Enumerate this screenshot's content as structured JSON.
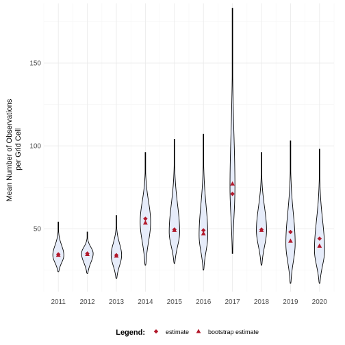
{
  "chart_data": {
    "type": "violin",
    "title": "",
    "xlabel": "",
    "ylabel": "Mean Number of Observations per Grid Cell",
    "ylabel_lines": [
      "Mean Number of Observations",
      "per Grid Cell"
    ],
    "ylim": [
      12,
      186
    ],
    "y_ticks": [
      50,
      100,
      150
    ],
    "grid": true,
    "legend_position": "bottom",
    "legend_title": "Legend:",
    "colors": {
      "violin_fill": "#e6ecfa",
      "violin_outline": "#000000",
      "points": "#b2182b"
    },
    "categories": [
      "2011",
      "2012",
      "2013",
      "2014",
      "2015",
      "2016",
      "2017",
      "2018",
      "2019",
      "2020"
    ],
    "series": [
      {
        "name": "estimate",
        "shape": "diamond",
        "values": [
          34.5,
          35,
          34,
          56,
          49.5,
          49,
          71,
          49.5,
          48,
          44
        ]
      },
      {
        "name": "bootstrap estimate",
        "shape": "triangle",
        "values": [
          34,
          34.5,
          33.5,
          53.5,
          49,
          47,
          77,
          49,
          42.5,
          39.5
        ]
      }
    ],
    "violins": [
      {
        "category": "2011",
        "min": 24,
        "max": 54,
        "mode": 34,
        "max_width": 0.38
      },
      {
        "category": "2012",
        "min": 23,
        "max": 48,
        "mode": 35,
        "max_width": 0.4
      },
      {
        "category": "2013",
        "min": 20,
        "max": 58,
        "mode": 34,
        "max_width": 0.36
      },
      {
        "category": "2014",
        "min": 28,
        "max": 96,
        "mode": 54,
        "max_width": 0.36
      },
      {
        "category": "2015",
        "min": 29,
        "max": 104,
        "mode": 48,
        "max_width": 0.36
      },
      {
        "category": "2016",
        "min": 25,
        "max": 107,
        "mode": 46,
        "max_width": 0.3
      },
      {
        "category": "2017",
        "min": 35,
        "max": 183,
        "mode": 75,
        "max_width": 0.17
      },
      {
        "category": "2018",
        "min": 28,
        "max": 96,
        "mode": 49,
        "max_width": 0.35
      },
      {
        "category": "2019",
        "min": 17,
        "max": 103,
        "mode": 41,
        "max_width": 0.32
      },
      {
        "category": "2020",
        "min": 17,
        "max": 98,
        "mode": 37,
        "max_width": 0.35
      }
    ]
  }
}
